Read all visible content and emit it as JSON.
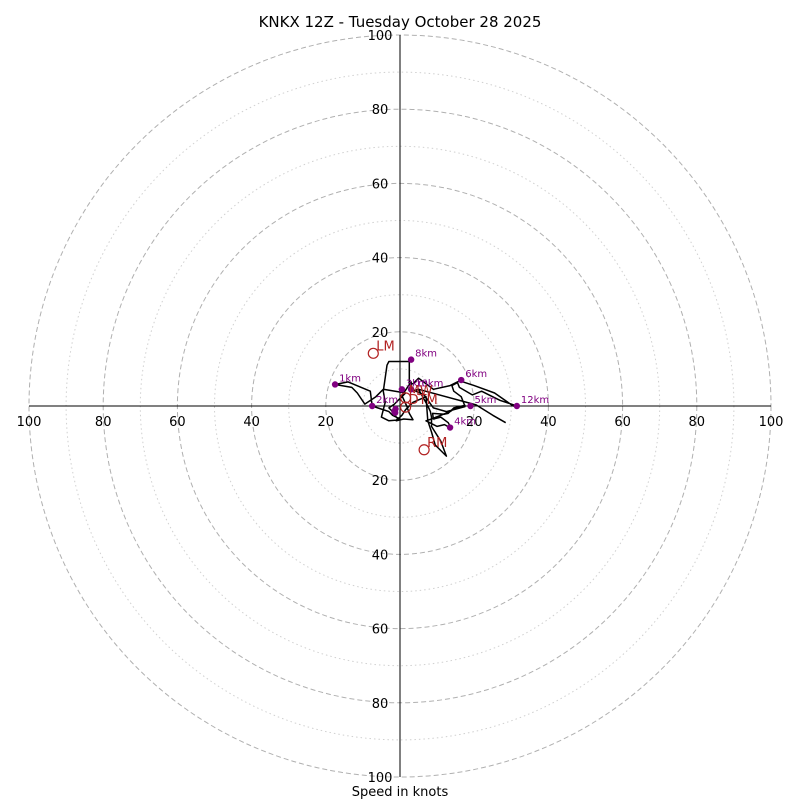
{
  "chart_data": {
    "type": "hodograph",
    "title": "KNKX 12Z - Tuesday October 28 2025",
    "xlabel": "Speed in knots",
    "range": 100,
    "major_rings": [
      20,
      40,
      60,
      80,
      100
    ],
    "minor_rings": [
      10,
      30,
      50,
      70,
      90
    ],
    "tick_labels": {
      "top": [
        "20",
        "40",
        "60",
        "80",
        "100"
      ],
      "bottom": [
        "20",
        "40",
        "60",
        "80",
        "100"
      ],
      "left": [
        "20",
        "40",
        "60",
        "80",
        "100"
      ],
      "right": [
        "20",
        "40",
        "60",
        "80",
        "100"
      ]
    },
    "tick_values": [
      20,
      40,
      60,
      80,
      100
    ],
    "hodograph": [
      [
        -0.5,
        -3.5
      ],
      [
        -1,
        -3
      ],
      [
        -2,
        -1.5
      ],
      [
        -3,
        -0.5
      ],
      [
        -1.5,
        0.5
      ],
      [
        -0.5,
        1.5
      ],
      [
        0.5,
        2.5
      ],
      [
        1.5,
        3.5
      ],
      [
        -4.5,
        4.5
      ],
      [
        -6.5,
        2.5
      ],
      [
        -9.5,
        0.5
      ],
      [
        -11.5,
        3.5
      ],
      [
        -13,
        5
      ],
      [
        -17.5,
        5.8
      ],
      [
        -14,
        6.5
      ],
      [
        -8,
        4
      ],
      [
        -7.5,
        0
      ],
      [
        -3,
        -1.5
      ],
      [
        -2,
        -2.5
      ],
      [
        0,
        -3.5
      ],
      [
        -1,
        -4
      ],
      [
        1,
        -3.5
      ],
      [
        3.5,
        -3.7
      ],
      [
        2.5,
        -2
      ],
      [
        1.8,
        0
      ],
      [
        0.5,
        2.8
      ],
      [
        3,
        6.5
      ],
      [
        3.2,
        4.5
      ],
      [
        6.5,
        3
      ],
      [
        9,
        -0.5
      ],
      [
        12.5,
        -1.5
      ],
      [
        17.5,
        -0.2
      ],
      [
        17.5,
        0.2
      ],
      [
        14.5,
        -0.5
      ],
      [
        13,
        -2
      ],
      [
        12,
        -2.2
      ],
      [
        8.8,
        -2
      ],
      [
        9,
        -3.5
      ],
      [
        11,
        -3
      ],
      [
        13,
        -4.5
      ],
      [
        13.8,
        -6
      ],
      [
        12,
        -5
      ],
      [
        10,
        -5.5
      ],
      [
        7,
        -4
      ],
      [
        8.5,
        -3.5
      ],
      [
        13.5,
        -1.5
      ],
      [
        15,
        -0.5
      ],
      [
        17.5,
        0
      ],
      [
        16.5,
        2.5
      ],
      [
        14.5,
        4
      ],
      [
        14,
        5.5
      ],
      [
        15.5,
        6.3
      ],
      [
        16,
        5
      ],
      [
        19.5,
        3
      ],
      [
        22,
        4
      ],
      [
        24,
        3
      ],
      [
        27,
        1.5
      ],
      [
        31.5,
        0
      ],
      [
        30.5,
        0
      ],
      [
        25.5,
        3.5
      ],
      [
        20,
        5.5
      ],
      [
        17,
        6.5
      ],
      [
        16.5,
        7
      ],
      [
        13.5,
        5.5
      ],
      [
        9,
        4.5
      ],
      [
        5,
        7.5
      ],
      [
        3.5,
        6
      ],
      [
        2.5,
        6
      ],
      [
        2.5,
        12
      ],
      [
        -3,
        12
      ],
      [
        -3.5,
        11
      ],
      [
        -4.5,
        4
      ],
      [
        -4,
        1
      ],
      [
        -5,
        -3
      ],
      [
        -3,
        -4
      ],
      [
        -1,
        -3.8
      ],
      [
        0,
        -3
      ],
      [
        0.5,
        -2.5
      ],
      [
        1.5,
        -1
      ],
      [
        3.5,
        1
      ],
      [
        7,
        2.5
      ],
      [
        7.5,
        -4
      ],
      [
        8.5,
        -7
      ],
      [
        9.5,
        -10.5
      ],
      [
        12.5,
        -13.5
      ],
      [
        11,
        -9.5
      ],
      [
        8.5,
        -5.5
      ],
      [
        8.5,
        -3
      ],
      [
        8.2,
        -1.5
      ],
      [
        7.5,
        0
      ],
      [
        5,
        4.5
      ],
      [
        3,
        4
      ],
      [
        5,
        4.5
      ],
      [
        20.5,
        0.3
      ],
      [
        25,
        -2.5
      ],
      [
        28.5,
        -4.5
      ]
    ],
    "height_points": [
      {
        "label": "1km",
        "u": -17.5,
        "v": 5.8
      },
      {
        "label": "2km",
        "u": -7.5,
        "v": 0
      },
      {
        "label": "3km",
        "u": 0.5,
        "v": 4.5
      },
      {
        "label": "4km",
        "u": 13.5,
        "v": -5.8
      },
      {
        "label": "5km",
        "u": 19,
        "v": 0
      },
      {
        "label": "6km",
        "u": 16.5,
        "v": 7
      },
      {
        "label": "8km",
        "u": 3,
        "v": 12.5
      },
      {
        "label": "10km",
        "u": 3,
        "v": 4.5
      },
      {
        "label": "12km",
        "u": 31.5,
        "v": 0
      },
      {
        "label": "",
        "u": -1.3,
        "v": -1.8
      },
      {
        "label": "",
        "u": -1.5,
        "v": -1.5
      },
      {
        "label": "",
        "u": -1.2,
        "v": -0.8
      }
    ],
    "markers": [
      {
        "label": "LM",
        "u": -7.2,
        "v": 14.2
      },
      {
        "label": "RM",
        "u": 6.5,
        "v": -11.8
      },
      {
        "label": "MW",
        "u": 1.5,
        "v": 2.2
      },
      {
        "label": "DTM",
        "u": 1.5,
        "v": -0.3
      }
    ],
    "colors": {
      "axis": "#000000",
      "major_grid": "#b0b0b0",
      "minor_grid": "#d0d0d0",
      "hodograph": "#000000",
      "height_points": "#800080",
      "markers": "#b22222"
    }
  }
}
